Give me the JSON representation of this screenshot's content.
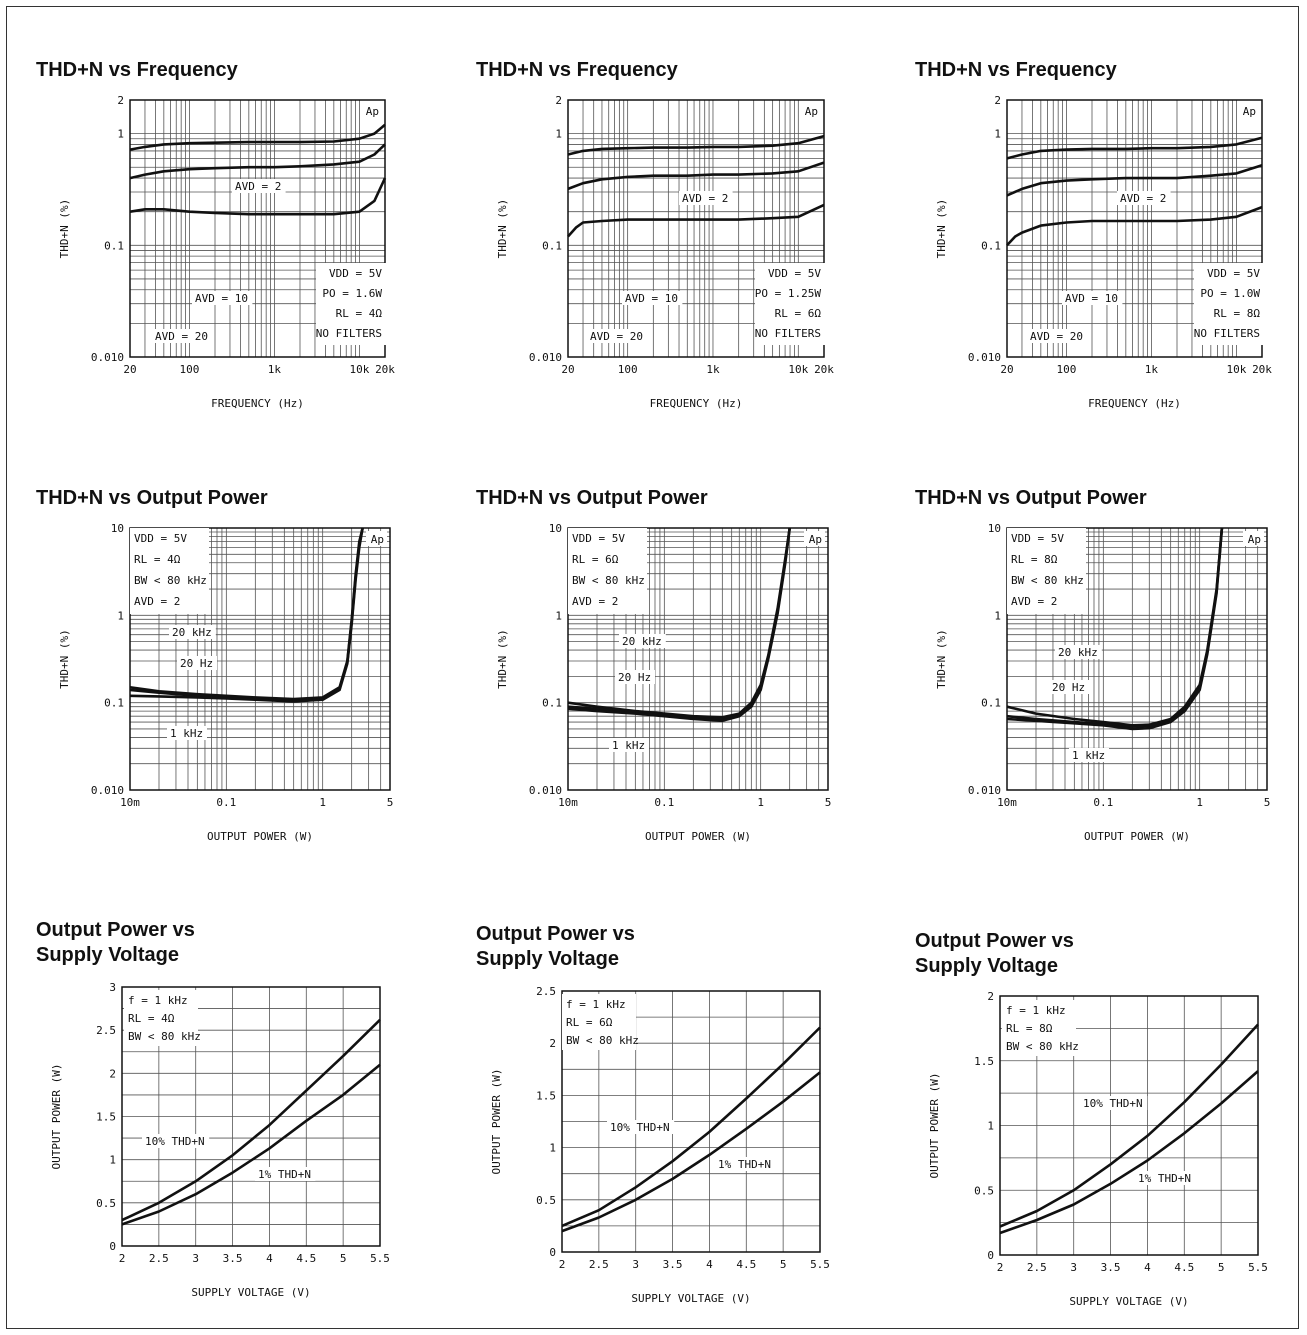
{
  "chart_data": [
    {
      "id": "c1",
      "type": "line",
      "title": "THD+N vs Frequency",
      "xlabel": "FREQUENCY (Hz)",
      "ylabel": "THD+N (%)",
      "xscale": "log",
      "yscale": "log",
      "xlim": [
        20,
        20000
      ],
      "ylim": [
        0.01,
        2
      ],
      "x_ticks": [
        "20",
        "100",
        "1k",
        "10k",
        "20k"
      ],
      "y_ticks": [
        "0.010",
        "0.1",
        "1",
        "2"
      ],
      "corner_label": "Ap",
      "conditions": [
        "VDD = 5V",
        "PO = 1.6W",
        "RL = 4Ω",
        "NO FILTERS"
      ],
      "series": [
        {
          "name": "AVD = 20",
          "x": [
            20,
            30,
            50,
            100,
            200,
            500,
            1000,
            2000,
            5000,
            10000,
            15000,
            20000
          ],
          "y": [
            0.72,
            0.76,
            0.8,
            0.82,
            0.83,
            0.84,
            0.84,
            0.84,
            0.85,
            0.9,
            1.0,
            1.2
          ]
        },
        {
          "name": "AVD = 10",
          "x": [
            20,
            30,
            50,
            100,
            200,
            500,
            1000,
            2000,
            5000,
            10000,
            15000,
            20000
          ],
          "y": [
            0.4,
            0.43,
            0.46,
            0.48,
            0.49,
            0.5,
            0.5,
            0.51,
            0.53,
            0.56,
            0.65,
            0.8
          ]
        },
        {
          "name": "AVD = 2",
          "x": [
            20,
            30,
            50,
            100,
            200,
            500,
            1000,
            2000,
            5000,
            10000,
            15000,
            20000
          ],
          "y": [
            0.2,
            0.21,
            0.21,
            0.2,
            0.195,
            0.19,
            0.19,
            0.19,
            0.19,
            0.2,
            0.25,
            0.4
          ]
        }
      ],
      "labels": [
        "AVD = 2",
        "AVD = 10",
        "AVD = 20"
      ]
    },
    {
      "id": "c2",
      "type": "line",
      "title": "THD+N vs Frequency",
      "xlabel": "FREQUENCY (Hz)",
      "ylabel": "THD+N (%)",
      "xscale": "log",
      "yscale": "log",
      "xlim": [
        20,
        20000
      ],
      "ylim": [
        0.01,
        2
      ],
      "x_ticks": [
        "20",
        "100",
        "1k",
        "10k",
        "20k"
      ],
      "y_ticks": [
        "0.010",
        "0.1",
        "1",
        "2"
      ],
      "corner_label": "Ap",
      "conditions": [
        "VDD = 5V",
        "PO = 1.25W",
        "RL = 6Ω",
        "NO FILTERS"
      ],
      "series": [
        {
          "name": "AVD = 20",
          "x": [
            20,
            30,
            50,
            100,
            200,
            500,
            1000,
            2000,
            5000,
            10000,
            20000
          ],
          "y": [
            0.65,
            0.7,
            0.73,
            0.74,
            0.75,
            0.75,
            0.76,
            0.76,
            0.78,
            0.82,
            0.95
          ]
        },
        {
          "name": "AVD = 10",
          "x": [
            20,
            30,
            50,
            100,
            200,
            500,
            1000,
            2000,
            5000,
            10000,
            20000
          ],
          "y": [
            0.32,
            0.36,
            0.39,
            0.41,
            0.42,
            0.42,
            0.43,
            0.43,
            0.44,
            0.46,
            0.55
          ]
        },
        {
          "name": "AVD = 2",
          "x": [
            20,
            25,
            30,
            50,
            100,
            200,
            500,
            1000,
            2000,
            5000,
            10000,
            20000
          ],
          "y": [
            0.12,
            0.145,
            0.16,
            0.165,
            0.17,
            0.17,
            0.17,
            0.17,
            0.17,
            0.175,
            0.18,
            0.23
          ]
        }
      ],
      "labels": [
        "AVD = 2",
        "AVD = 10",
        "AVD = 20"
      ]
    },
    {
      "id": "c3",
      "type": "line",
      "title": "THD+N vs Frequency",
      "xlabel": "FREQUENCY (Hz)",
      "ylabel": "THD+N (%)",
      "xscale": "log",
      "yscale": "log",
      "xlim": [
        20,
        20000
      ],
      "ylim": [
        0.01,
        2
      ],
      "x_ticks": [
        "20",
        "100",
        "1k",
        "10k",
        "20k"
      ],
      "y_ticks": [
        "0.010",
        "0.1",
        "1",
        "2"
      ],
      "corner_label": "Ap",
      "conditions": [
        "VDD = 5V",
        "PO = 1.0W",
        "RL = 8Ω",
        "NO FILTERS"
      ],
      "series": [
        {
          "name": "AVD = 20",
          "x": [
            20,
            30,
            50,
            100,
            200,
            500,
            1000,
            2000,
            5000,
            10000,
            20000
          ],
          "y": [
            0.6,
            0.65,
            0.7,
            0.72,
            0.73,
            0.73,
            0.74,
            0.74,
            0.76,
            0.8,
            0.92
          ]
        },
        {
          "name": "AVD = 10",
          "x": [
            20,
            30,
            50,
            100,
            200,
            500,
            1000,
            2000,
            5000,
            10000,
            20000
          ],
          "y": [
            0.28,
            0.32,
            0.36,
            0.38,
            0.39,
            0.4,
            0.4,
            0.4,
            0.42,
            0.44,
            0.52
          ]
        },
        {
          "name": "AVD = 2",
          "x": [
            20,
            25,
            30,
            50,
            100,
            200,
            500,
            1000,
            2000,
            5000,
            10000,
            20000
          ],
          "y": [
            0.1,
            0.12,
            0.13,
            0.15,
            0.16,
            0.165,
            0.165,
            0.165,
            0.165,
            0.17,
            0.18,
            0.22
          ]
        }
      ],
      "labels": [
        "AVD = 2",
        "AVD = 10",
        "AVD = 20"
      ]
    },
    {
      "id": "c4",
      "type": "line",
      "title": "THD+N vs Output Power",
      "xlabel": "OUTPUT POWER (W)",
      "ylabel": "THD+N (%)",
      "xscale": "log",
      "yscale": "log",
      "xlim": [
        0.01,
        5
      ],
      "ylim": [
        0.01,
        10
      ],
      "x_ticks": [
        "10m",
        "0.1",
        "1",
        "5"
      ],
      "y_ticks": [
        "0.010",
        "0.1",
        "1",
        "10"
      ],
      "corner_label": "Ap",
      "conditions": [
        "VDD = 5V",
        "RL = 4Ω",
        "BW < 80 kHz",
        "AVD = 2"
      ],
      "series": [
        {
          "name": "20 kHz",
          "x": [
            0.01,
            0.02,
            0.05,
            0.1,
            0.2,
            0.5,
            1,
            1.5,
            1.8,
            2,
            2.2,
            2.4,
            2.6
          ],
          "y": [
            0.15,
            0.135,
            0.125,
            0.12,
            0.115,
            0.11,
            0.115,
            0.15,
            0.3,
            0.9,
            3,
            7,
            10
          ]
        },
        {
          "name": "20 Hz",
          "x": [
            0.01,
            0.02,
            0.05,
            0.1,
            0.2,
            0.5,
            1,
            1.5,
            1.8,
            2,
            2.2,
            2.4,
            2.6
          ],
          "y": [
            0.14,
            0.13,
            0.12,
            0.115,
            0.11,
            0.105,
            0.11,
            0.145,
            0.29,
            0.85,
            2.8,
            6.5,
            10
          ]
        },
        {
          "name": "1 kHz",
          "x": [
            0.01,
            0.02,
            0.05,
            0.1,
            0.2,
            0.5,
            1,
            1.5,
            1.8,
            2,
            2.2,
            2.4,
            2.6
          ],
          "y": [
            0.12,
            0.118,
            0.115,
            0.112,
            0.108,
            0.103,
            0.108,
            0.14,
            0.28,
            0.8,
            2.6,
            6,
            10
          ]
        }
      ],
      "labels": [
        "20 kHz",
        "20 Hz",
        "1 kHz"
      ]
    },
    {
      "id": "c5",
      "type": "line",
      "title": "THD+N vs Output Power",
      "xlabel": "OUTPUT POWER (W)",
      "ylabel": "THD+N (%)",
      "xscale": "log",
      "yscale": "log",
      "xlim": [
        0.01,
        5
      ],
      "ylim": [
        0.01,
        10
      ],
      "x_ticks": [
        "10m",
        "0.1",
        "1",
        "5"
      ],
      "y_ticks": [
        "0.010",
        "0.1",
        "1",
        "10"
      ],
      "corner_label": "Ap",
      "conditions": [
        "VDD = 5V",
        "RL = 6Ω",
        "BW < 80 kHz",
        "AVD = 2"
      ],
      "series": [
        {
          "name": "20 kHz",
          "x": [
            0.01,
            0.02,
            0.05,
            0.1,
            0.2,
            0.4,
            0.6,
            0.8,
            1,
            1.2,
            1.5,
            1.8,
            2
          ],
          "y": [
            0.1,
            0.09,
            0.08,
            0.075,
            0.07,
            0.068,
            0.075,
            0.1,
            0.16,
            0.35,
            1.2,
            4.5,
            10
          ]
        },
        {
          "name": "20 Hz",
          "x": [
            0.01,
            0.02,
            0.05,
            0.1,
            0.2,
            0.4,
            0.6,
            0.8,
            1,
            1.2,
            1.5,
            1.8,
            2
          ],
          "y": [
            0.09,
            0.085,
            0.078,
            0.072,
            0.067,
            0.065,
            0.072,
            0.095,
            0.15,
            0.33,
            1.1,
            4.2,
            10
          ]
        },
        {
          "name": "1 kHz",
          "x": [
            0.01,
            0.02,
            0.05,
            0.1,
            0.2,
            0.4,
            0.6,
            0.8,
            1,
            1.2,
            1.5,
            1.8,
            2
          ],
          "y": [
            0.085,
            0.08,
            0.075,
            0.07,
            0.065,
            0.062,
            0.07,
            0.09,
            0.14,
            0.32,
            1.05,
            4,
            10
          ]
        }
      ],
      "labels": [
        "20 kHz",
        "20 Hz",
        "1 kHz"
      ]
    },
    {
      "id": "c6",
      "type": "line",
      "title": "THD+N vs Output Power",
      "xlabel": "OUTPUT POWER (W)",
      "ylabel": "THD+N (%)",
      "xscale": "log",
      "yscale": "log",
      "xlim": [
        0.01,
        5
      ],
      "ylim": [
        0.01,
        10
      ],
      "x_ticks": [
        "10m",
        "0.1",
        "1",
        "5"
      ],
      "y_ticks": [
        "0.010",
        "0.1",
        "1",
        "10"
      ],
      "corner_label": "Ap",
      "conditions": [
        "VDD = 5V",
        "RL = 8Ω",
        "BW < 80 kHz",
        "AVD = 2"
      ],
      "series": [
        {
          "name": "20 kHz",
          "x": [
            0.01,
            0.02,
            0.05,
            0.1,
            0.2,
            0.3,
            0.5,
            0.7,
            1,
            1.2,
            1.5,
            1.7
          ],
          "y": [
            0.09,
            0.075,
            0.065,
            0.06,
            0.055,
            0.056,
            0.065,
            0.09,
            0.16,
            0.4,
            2,
            10
          ]
        },
        {
          "name": "20 Hz",
          "x": [
            0.01,
            0.02,
            0.05,
            0.1,
            0.2,
            0.3,
            0.5,
            0.7,
            1,
            1.2,
            1.5,
            1.7
          ],
          "y": [
            0.07,
            0.065,
            0.06,
            0.057,
            0.053,
            0.054,
            0.062,
            0.085,
            0.15,
            0.38,
            1.9,
            10
          ]
        },
        {
          "name": "1 kHz",
          "x": [
            0.01,
            0.02,
            0.05,
            0.1,
            0.2,
            0.3,
            0.5,
            0.7,
            1,
            1.2,
            1.5,
            1.7
          ],
          "y": [
            0.065,
            0.062,
            0.058,
            0.055,
            0.05,
            0.051,
            0.06,
            0.08,
            0.14,
            0.36,
            1.8,
            10
          ]
        }
      ],
      "labels": [
        "20 kHz",
        "20 Hz",
        "1 kHz"
      ]
    },
    {
      "id": "c7",
      "type": "line",
      "title": "Output Power vs\nSupply Voltage",
      "xlabel": "SUPPLY VOLTAGE (V)",
      "ylabel": "OUTPUT POWER (W)",
      "xscale": "linear",
      "yscale": "linear",
      "xlim": [
        2,
        5.5
      ],
      "ylim": [
        0,
        3
      ],
      "x_ticks": [
        "2",
        "2.5",
        "3",
        "3.5",
        "4",
        "4.5",
        "5",
        "5.5"
      ],
      "y_ticks": [
        "0",
        "0.5",
        "1",
        "1.5",
        "2",
        "2.5",
        "3"
      ],
      "conditions": [
        "f = 1 kHz",
        "RL = 4Ω",
        "BW < 80 kHz"
      ],
      "series": [
        {
          "name": "10% THD+N",
          "x": [
            2,
            2.5,
            3,
            3.5,
            4,
            4.5,
            5,
            5.5
          ],
          "y": [
            0.3,
            0.5,
            0.75,
            1.05,
            1.4,
            1.8,
            2.2,
            2.62
          ]
        },
        {
          "name": "1% THD+N",
          "x": [
            2,
            2.5,
            3,
            3.5,
            4,
            4.5,
            5,
            5.5
          ],
          "y": [
            0.25,
            0.4,
            0.6,
            0.85,
            1.13,
            1.45,
            1.75,
            2.1
          ]
        }
      ],
      "labels": [
        "10% THD+N",
        "1% THD+N"
      ]
    },
    {
      "id": "c8",
      "type": "line",
      "title": "Output Power vs\nSupply Voltage",
      "xlabel": "SUPPLY VOLTAGE (V)",
      "ylabel": "OUTPUT POWER (W)",
      "xscale": "linear",
      "yscale": "linear",
      "xlim": [
        2,
        5.5
      ],
      "ylim": [
        0,
        2.5
      ],
      "x_ticks": [
        "2",
        "2.5",
        "3",
        "3.5",
        "4",
        "4.5",
        "5",
        "5.5"
      ],
      "y_ticks": [
        "0",
        "0.5",
        "1",
        "1.5",
        "2",
        "2.5"
      ],
      "conditions": [
        "f = 1 kHz",
        "RL = 6Ω",
        "BW < 80 kHz"
      ],
      "series": [
        {
          "name": "10% THD+N",
          "x": [
            2,
            2.5,
            3,
            3.5,
            4,
            4.5,
            5,
            5.5
          ],
          "y": [
            0.25,
            0.4,
            0.62,
            0.87,
            1.15,
            1.47,
            1.8,
            2.15
          ]
        },
        {
          "name": "1% THD+N",
          "x": [
            2,
            2.5,
            3,
            3.5,
            4,
            4.5,
            5,
            5.5
          ],
          "y": [
            0.2,
            0.33,
            0.5,
            0.7,
            0.93,
            1.18,
            1.44,
            1.72
          ]
        }
      ],
      "labels": [
        "10% THD+N",
        "1% THD+N"
      ]
    },
    {
      "id": "c9",
      "type": "line",
      "title": "Output Power vs\nSupply Voltage",
      "xlabel": "SUPPLY VOLTAGE (V)",
      "ylabel": "OUTPUT POWER (W)",
      "xscale": "linear",
      "yscale": "linear",
      "xlim": [
        2,
        5.5
      ],
      "ylim": [
        0,
        2
      ],
      "x_ticks": [
        "2",
        "2.5",
        "3",
        "3.5",
        "4",
        "4.5",
        "5",
        "5.5"
      ],
      "y_ticks": [
        "0",
        "0.5",
        "1",
        "1.5",
        "2"
      ],
      "conditions": [
        "f = 1 kHz",
        "RL = 8Ω",
        "BW < 80 kHz"
      ],
      "series": [
        {
          "name": "10% THD+N",
          "x": [
            2,
            2.5,
            3,
            3.5,
            4,
            4.5,
            5,
            5.5
          ],
          "y": [
            0.22,
            0.34,
            0.5,
            0.7,
            0.92,
            1.18,
            1.47,
            1.78
          ]
        },
        {
          "name": "1% THD+N",
          "x": [
            2,
            2.5,
            3,
            3.5,
            4,
            4.5,
            5,
            5.5
          ],
          "y": [
            0.17,
            0.27,
            0.39,
            0.55,
            0.73,
            0.94,
            1.17,
            1.42
          ]
        }
      ],
      "labels": [
        "10% THD+N",
        "1% THD+N"
      ]
    }
  ]
}
